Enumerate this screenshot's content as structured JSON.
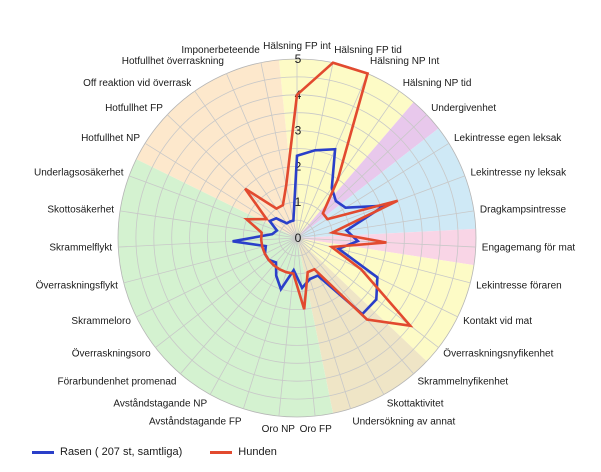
{
  "chart_data": {
    "type": "radar",
    "title": "",
    "categories": [
      "Hälsning FP int",
      "Hälsning FP tid",
      "Hälsning NP Int",
      "Hälsning NP tid",
      "Undergivenhet",
      "Lekintresse egen leksak",
      "Lekintresse ny leksak",
      "Dragkampsintresse",
      "Engagemang för mat",
      "Lekintresse föraren",
      "Kontakt vid mat",
      "Överraskningsnyfikenhet",
      "Skrammelnyfikenhet",
      "Skottaktivitet",
      "Undersökning av annat",
      "Oro FP",
      "Oro NP",
      "Avståndstagande FP",
      "Avståndstagande NP",
      "Förarbundenhet promenad",
      "Överraskningsoro",
      "Skrammeloro",
      "Överraskningsflykt",
      "Skrammelflykt",
      "Skottosäkerhet",
      "Underlagsosäkerhet",
      "Hotfullhet NP",
      "Hotfullhet FP",
      "Off reaktion vid överrask",
      "Hotfullhet överraskning",
      "Imponerbeteende"
    ],
    "rmax": 5,
    "ticks": [
      "0",
      "1",
      "2",
      "3",
      "4",
      "5"
    ],
    "series": [
      {
        "name": "Rasen ( 207 st, samtliga)",
        "color": "#2a3fc9",
        "values": [
          2.3,
          2.5,
          2.7,
          1.7,
          1.5,
          1.6,
          2.6,
          1.4,
          1.7,
          1.2,
          2.5,
          2.8,
          2.8,
          1.2,
          1.2,
          1.4,
          0.9,
          1.5,
          1.2,
          0.9,
          1.0,
          1.0,
          0.9,
          1.8,
          0.7,
          0.6,
          0.9,
          0.8,
          0.5,
          0.5,
          0.5
        ]
      },
      {
        "name": "Hunden",
        "color": "#e24a2f",
        "values": [
          4.0,
          5.0,
          5.0,
          2.0,
          1.0,
          1.0,
          3.0,
          1.0,
          2.5,
          1.0,
          2.0,
          4.0,
          3.0,
          1.0,
          1.0,
          2.0,
          1.0,
          1.0,
          1.0,
          1.0,
          1.0,
          1.0,
          1.0,
          1.0,
          1.0,
          1.5,
          1.0,
          2.0,
          1.0,
          1.0,
          1.5
        ]
      }
    ],
    "background_sectors": [
      {
        "from": 0,
        "to": 3,
        "color": "#fdfbc6"
      },
      {
        "from": 4,
        "to": 4,
        "color": "#e8c8ec"
      },
      {
        "from": 5,
        "to": 7,
        "color": "#cfe9f6"
      },
      {
        "from": 8,
        "to": 8,
        "color": "#f9d5e6"
      },
      {
        "from": 9,
        "to": 11,
        "color": "#fdfbc6"
      },
      {
        "from": 12,
        "to": 14,
        "color": "#efe5c6"
      },
      {
        "from": 15,
        "to": 25,
        "color": "#d4f2d0"
      },
      {
        "from": 26,
        "to": 30,
        "color": "#fde8cc"
      }
    ],
    "grid": true,
    "legend_position": "bottom-left"
  }
}
